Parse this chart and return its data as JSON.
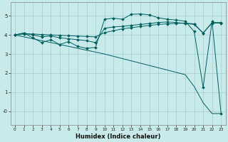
{
  "xlabel": "Humidex (Indice chaleur)",
  "bg_color": "#c8eaea",
  "grid_color": "#a8cccc",
  "line_color": "#006060",
  "xlim": [
    -0.5,
    23.5
  ],
  "ylim": [
    -0.7,
    5.7
  ],
  "yticks": [
    0,
    1,
    2,
    3,
    4,
    5
  ],
  "ytick_labels": [
    "-0",
    "1",
    "2",
    "3",
    "4",
    "5"
  ],
  "xticks": [
    0,
    1,
    2,
    3,
    4,
    5,
    6,
    7,
    8,
    9,
    10,
    11,
    12,
    13,
    14,
    15,
    16,
    17,
    18,
    19,
    20,
    21,
    22,
    23
  ],
  "line1_x": [
    0,
    1,
    2,
    3,
    4,
    5,
    6,
    7,
    8,
    9,
    10,
    11,
    12,
    13,
    14,
    15,
    16,
    17,
    18,
    19,
    20,
    21,
    22,
    23
  ],
  "line1_y": [
    4.0,
    4.1,
    4.0,
    3.9,
    3.95,
    3.85,
    3.8,
    3.75,
    3.7,
    3.6,
    4.35,
    4.42,
    4.45,
    4.5,
    4.55,
    4.6,
    4.65,
    4.68,
    4.65,
    4.6,
    4.55,
    4.1,
    4.65,
    4.65
  ],
  "line2_x": [
    0,
    1,
    2,
    3,
    4,
    5,
    6,
    7,
    8,
    9,
    10,
    11,
    12,
    13,
    14,
    15,
    16,
    17,
    18,
    19,
    20,
    21,
    22,
    23
  ],
  "line2_y": [
    4.0,
    4.1,
    3.85,
    3.6,
    3.75,
    3.5,
    3.65,
    3.4,
    3.3,
    3.35,
    4.82,
    4.88,
    4.82,
    5.08,
    5.1,
    5.05,
    4.9,
    4.82,
    4.78,
    4.72,
    4.18,
    1.25,
    4.72,
    -0.12
  ],
  "line3_x": [
    0,
    1,
    2,
    3,
    4,
    5,
    6,
    7,
    8,
    9,
    10,
    11,
    12,
    13,
    14,
    15,
    16,
    17,
    18,
    19,
    20,
    21,
    22,
    23
  ],
  "line3_y": [
    4.0,
    4.05,
    4.05,
    4.02,
    4.0,
    3.98,
    3.96,
    3.94,
    3.92,
    3.9,
    4.12,
    4.22,
    4.32,
    4.38,
    4.44,
    4.5,
    4.55,
    4.58,
    4.6,
    4.62,
    4.58,
    4.1,
    4.62,
    4.62
  ],
  "line4_x": [
    0,
    1,
    2,
    3,
    4,
    5,
    6,
    7,
    8,
    9,
    10,
    11,
    12,
    13,
    14,
    15,
    16,
    17,
    18,
    19,
    20,
    21,
    22,
    23
  ],
  "line4_y": [
    4.0,
    3.9,
    3.8,
    3.7,
    3.6,
    3.5,
    3.4,
    3.3,
    3.2,
    3.1,
    3.0,
    2.88,
    2.76,
    2.64,
    2.52,
    2.4,
    2.28,
    2.16,
    2.04,
    1.92,
    1.3,
    0.45,
    -0.12,
    -0.12
  ]
}
